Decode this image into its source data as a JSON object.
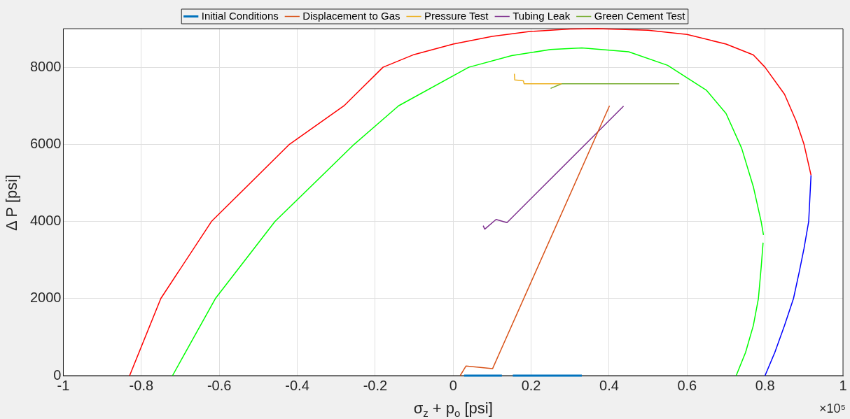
{
  "chart_data": {
    "type": "line",
    "xlabel": "σ$_{z}$ + p$_{o}$ [psi]",
    "ylabel": "Δ P [psi]",
    "xlim": [
      -1,
      1
    ],
    "xticks": [
      -1,
      -0.8,
      -0.6,
      -0.4,
      -0.2,
      0,
      0.2,
      0.4,
      0.6,
      0.8,
      1
    ],
    "ylim": [
      0,
      9000
    ],
    "yticks": [
      0,
      2000,
      4000,
      6000,
      8000
    ],
    "grid": true,
    "legend": "top",
    "marker": "none",
    "line_style": "solid",
    "annotations": [
      "×10⁵"
    ],
    "series": [
      {
        "name": "Initial Conditions",
        "color": "#0072bd",
        "x": [
          0.028,
          0.125,
          0.14,
          0.153,
          0.33
        ],
        "values": [
          0,
          0,
          null,
          0,
          0
        ]
      },
      {
        "name": "Displacement to Gas",
        "color": "#d95319",
        "x": [
          0.018,
          0.033,
          0.101,
          0.401
        ],
        "values": [
          0,
          250,
          180,
          7000
        ]
      },
      {
        "name": "Pressure Test",
        "color": "#edb120",
        "x": [
          0.157,
          0.158,
          0.18,
          0.182,
          0.278
        ],
        "values": [
          7830,
          7670,
          7650,
          7570,
          7570
        ]
      },
      {
        "name": "Tubing Leak",
        "color": "#7e2f8e",
        "x": [
          0.077,
          0.081,
          0.11,
          0.138,
          0.437
        ],
        "values": [
          3890,
          3800,
          4050,
          3970,
          6990
        ]
      },
      {
        "name": "Green Cement Test",
        "color": "#77ac30",
        "x": [
          0.25,
          0.278,
          0.58
        ],
        "values": [
          7450,
          7570,
          7570
        ]
      },
      {
        "color": "#ff0000",
        "x": [
          -0.83,
          -0.75,
          -0.62,
          -0.42,
          -0.28,
          -0.18,
          -0.1,
          0,
          0.1,
          0.2,
          0.3,
          0.37,
          0.5,
          0.6,
          0.7,
          0.77,
          0.8,
          0.85,
          0.88,
          0.9,
          0.918
        ],
        "values": [
          0,
          2000,
          4000,
          6000,
          7000,
          8000,
          8330,
          8600,
          8800,
          8930,
          8990,
          9000,
          8960,
          8850,
          8600,
          8320,
          8000,
          7300,
          6600,
          6000,
          5200
        ]
      },
      {
        "color": "#00ff00",
        "x": [
          -0.72,
          -0.61,
          -0.457,
          -0.254,
          -0.14,
          0.04,
          0.15,
          0.25,
          0.33,
          0.45,
          0.55,
          0.65,
          0.7,
          0.74,
          0.77,
          0.79,
          0.796
        ],
        "values": [
          0,
          2000,
          4000,
          6000,
          7000,
          8000,
          8300,
          8460,
          8500,
          8400,
          8050,
          7400,
          6800,
          5900,
          4900,
          4000,
          3650
        ]
      },
      {
        "color": "#00ff00",
        "x": [
          0.795,
          0.79,
          0.783,
          0.77,
          0.75,
          0.726
        ],
        "values": [
          3450,
          2800,
          2000,
          1300,
          600,
          0
        ]
      },
      {
        "color": "#0000ff",
        "x": [
          0.918,
          0.912,
          0.9,
          0.888,
          0.873,
          0.85,
          0.825,
          0.8
        ],
        "values": [
          5200,
          4000,
          3300,
          2700,
          2000,
          1300,
          600,
          0
        ]
      }
    ]
  }
}
